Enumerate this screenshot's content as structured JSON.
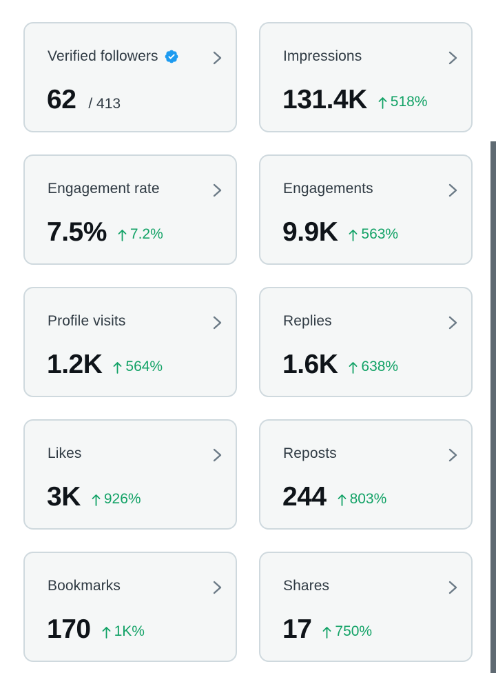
{
  "colors": {
    "card_bg": "#f5f7f7",
    "card_border": "#cfd9de",
    "positive": "#12a266",
    "verified_badge": "#1d9bf0",
    "chevron": "#6b7a86"
  },
  "cards": [
    {
      "label": "Verified followers",
      "value": "62",
      "total": "/ 413",
      "icon": "verified-badge-icon"
    },
    {
      "label": "Impressions",
      "value": "131.4K",
      "change": "518%"
    },
    {
      "label": "Engagement rate",
      "value": "7.5%",
      "change": "7.2%"
    },
    {
      "label": "Engagements",
      "value": "9.9K",
      "change": "563%"
    },
    {
      "label": "Profile visits",
      "value": "1.2K",
      "change": "564%"
    },
    {
      "label": "Replies",
      "value": "1.6K",
      "change": "638%"
    },
    {
      "label": "Likes",
      "value": "3K",
      "change": "926%"
    },
    {
      "label": "Reposts",
      "value": "244",
      "change": "803%"
    },
    {
      "label": "Bookmarks",
      "value": "170",
      "change": "1K%"
    },
    {
      "label": "Shares",
      "value": "17",
      "change": "750%"
    }
  ]
}
